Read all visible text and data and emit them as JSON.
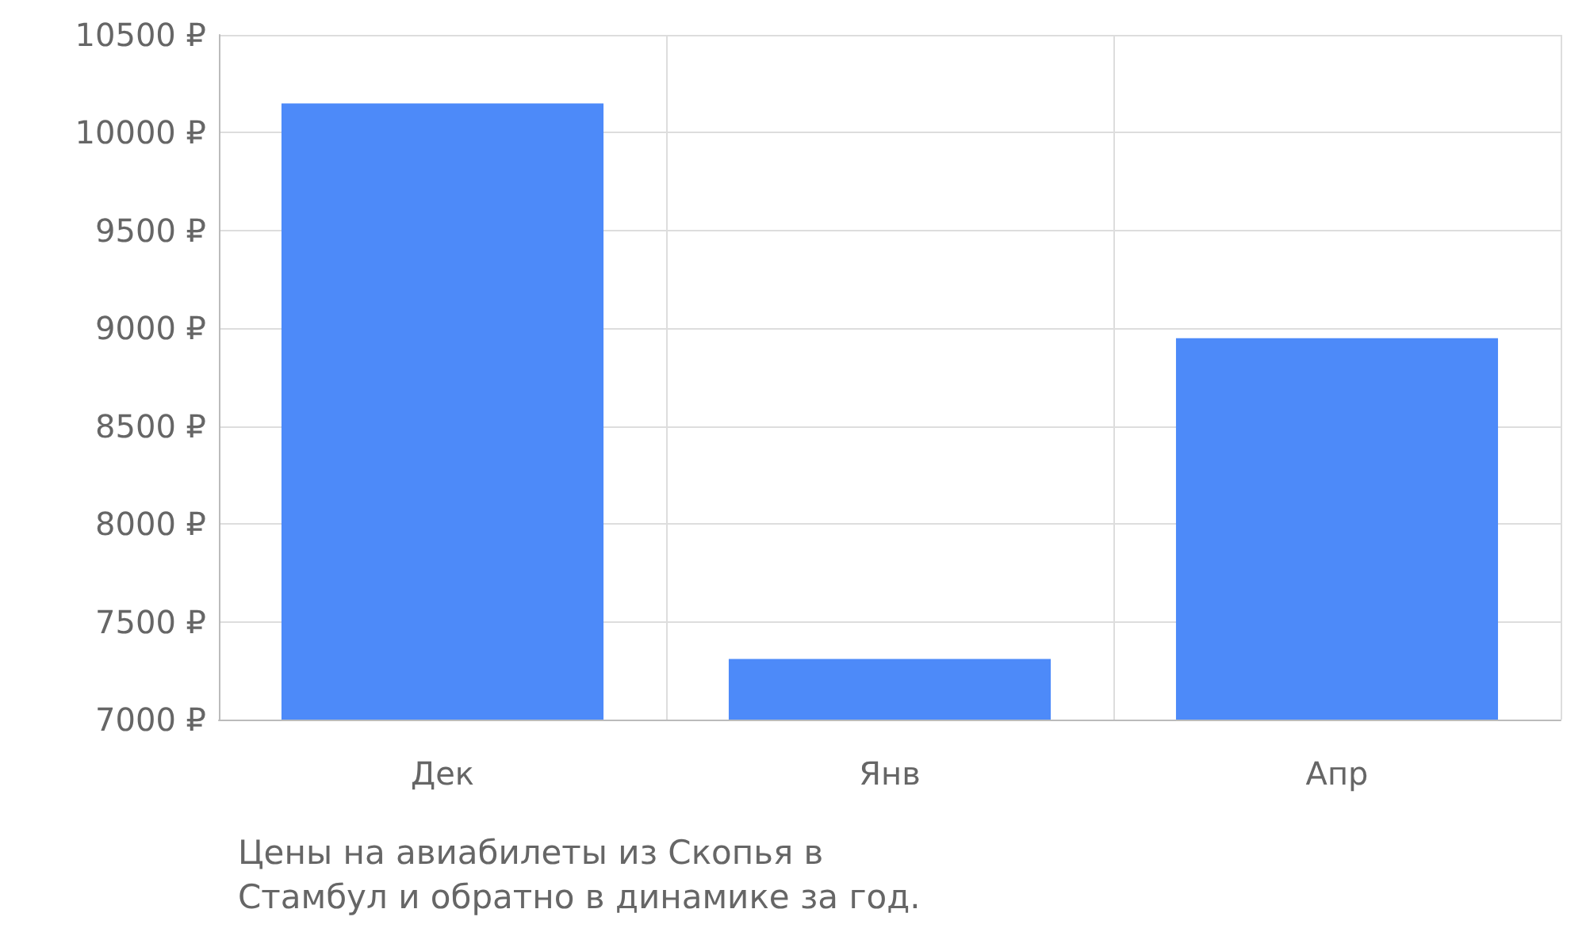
{
  "chart_data": {
    "type": "bar",
    "categories": [
      "Дек",
      "Янв",
      "Апр"
    ],
    "values": [
      10150,
      7310,
      8950
    ],
    "color": "#4d8af9",
    "ylim": [
      7000,
      10500
    ],
    "yticks": [
      {
        "value": 7000,
        "label": "7000 ₽"
      },
      {
        "value": 7500,
        "label": "7500 ₽"
      },
      {
        "value": 8000,
        "label": "8000 ₽"
      },
      {
        "value": 8500,
        "label": "8500 ₽"
      },
      {
        "value": 9000,
        "label": "9000 ₽"
      },
      {
        "value": 9500,
        "label": "9500 ₽"
      },
      {
        "value": 10000,
        "label": "10000 ₽"
      },
      {
        "value": 10500,
        "label": "10500 ₽"
      }
    ],
    "grid": true,
    "annotations": [
      "Цены на авиабилеты из Скопья в Стамбул и обратно в динамике за год."
    ]
  }
}
